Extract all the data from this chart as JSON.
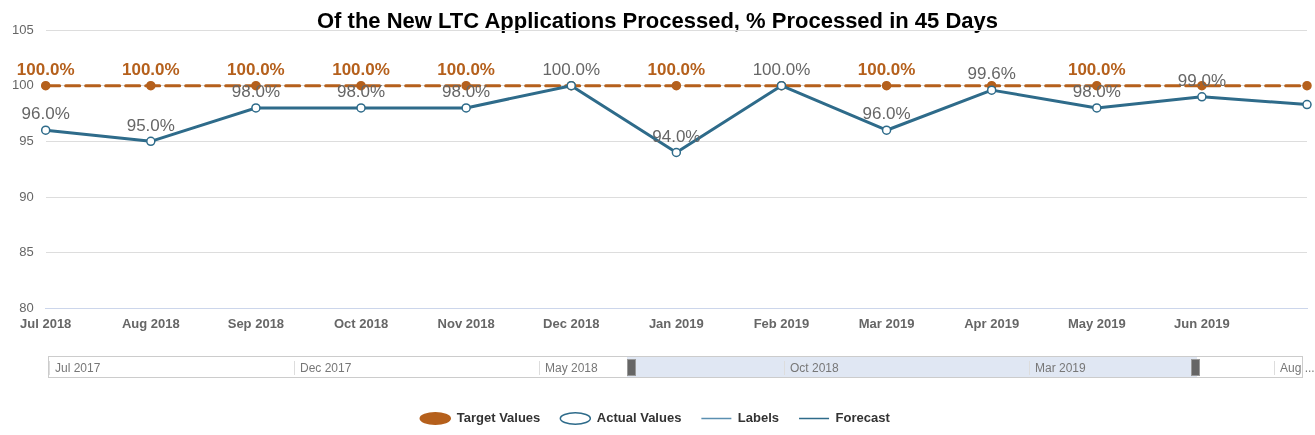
{
  "chart_data": {
    "type": "line",
    "title": "Of the New LTC Applications Processed, % Processed in 45 Days",
    "categories": [
      "Jul 2018",
      "Aug 2018",
      "Sep 2018",
      "Oct 2018",
      "Nov 2018",
      "Dec 2018",
      "Jan 2019",
      "Feb 2019",
      "Mar 2019",
      "Apr 2019",
      "May 2019",
      "Jun 2019",
      null
    ],
    "series": [
      {
        "name": "Target Values",
        "color": "#b5601c",
        "line_style": "dashed",
        "marker": "circle",
        "values": [
          100,
          100,
          100,
          100,
          100,
          100,
          100,
          100,
          100,
          100,
          100,
          100,
          100
        ],
        "value_labels": [
          "100.0%",
          "100.0%",
          "100.0%",
          "100.0%",
          "100.0%",
          null,
          "100.0%",
          null,
          "100.0%",
          null,
          "100.0%",
          null,
          null
        ]
      },
      {
        "name": "Actual Values",
        "color": "#2e6b8a",
        "line_style": "solid",
        "marker": "circle",
        "values": [
          96,
          95,
          98,
          98,
          98,
          100,
          94,
          100,
          96,
          99.6,
          98,
          99,
          98.3
        ],
        "value_labels": [
          "96.0%",
          "95.0%",
          "98.0%",
          "98.0%",
          "98.0%",
          "100.0%",
          "94.0%",
          "100.0%",
          "96.0%",
          "99.6%",
          "98.0%",
          "99.0%",
          null
        ]
      },
      {
        "name": "Labels",
        "color": "#5a8fb0",
        "line_style": "solid",
        "marker": "none",
        "values": [
          null,
          null,
          null,
          null,
          null,
          null,
          null,
          null,
          null,
          null,
          null,
          null,
          null
        ]
      },
      {
        "name": "Forecast",
        "color": "#2e6b8a",
        "line_style": "dashed",
        "marker": "none",
        "values": [
          null,
          null,
          null,
          null,
          null,
          null,
          null,
          null,
          null,
          null,
          null,
          null,
          null
        ]
      }
    ],
    "ylim": [
      80,
      105
    ],
    "yticks": [
      80,
      85,
      90,
      95,
      100,
      105
    ],
    "grid": "y",
    "legend": "bottom",
    "annotations": [
      "Jul 2017",
      "Dec 2017",
      "May 2018",
      "Oct 2018",
      "Mar 2019",
      "Aug ..."
    ]
  }
}
